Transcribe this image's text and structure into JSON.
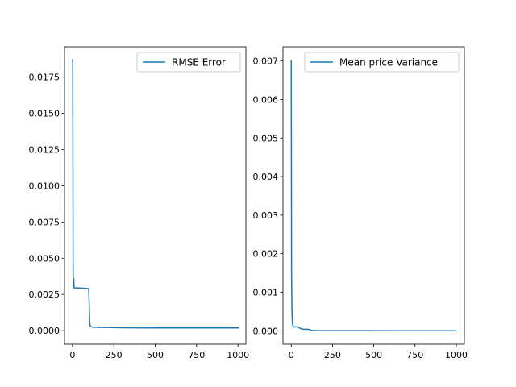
{
  "chart_data": [
    {
      "type": "line",
      "title": "",
      "xlabel": "",
      "ylabel": "",
      "xlim": [
        -48,
        1048
      ],
      "ylim": [
        -0.00094,
        0.0196
      ],
      "xticks": [
        0,
        250,
        500,
        750,
        1000
      ],
      "xtick_labels": [
        "0",
        "250",
        "500",
        "750",
        "1000"
      ],
      "yticks": [
        0.0,
        0.0025,
        0.005,
        0.0075,
        0.01,
        0.0125,
        0.015,
        0.0175
      ],
      "ytick_labels": [
        "0.0000",
        "0.0025",
        "0.0050",
        "0.0075",
        "0.0100",
        "0.0125",
        "0.0150",
        "0.0175"
      ],
      "legend": "upper right",
      "grid": false,
      "series": [
        {
          "name": "RMSE Error",
          "color": "#1f77b4",
          "x": [
            0,
            2,
            4,
            6,
            8,
            10,
            14,
            20,
            40,
            60,
            80,
            90,
            95,
            98,
            100,
            102,
            104,
            107,
            110,
            120,
            150,
            200,
            300,
            500,
            700,
            1000
          ],
          "y": [
            0.0187,
            0.0185,
            0.0038,
            0.0031,
            0.0036,
            0.00295,
            0.00295,
            0.00295,
            0.00294,
            0.00293,
            0.00292,
            0.0029,
            0.0029,
            0.0029,
            0.0023,
            0.0015,
            0.0006,
            0.00035,
            0.00028,
            0.00025,
            0.00023,
            0.00022,
            0.0002,
            0.00019,
            0.00019,
            0.00019
          ]
        }
      ]
    },
    {
      "type": "line",
      "title": "",
      "xlabel": "",
      "ylabel": "",
      "xlim": [
        -50,
        1049
      ],
      "ylim": [
        -0.00035,
        0.00737
      ],
      "xticks": [
        0,
        250,
        500,
        750,
        1000
      ],
      "xtick_labels": [
        "0",
        "250",
        "500",
        "750",
        "1000"
      ],
      "yticks": [
        0.0,
        0.001,
        0.002,
        0.003,
        0.004,
        0.005,
        0.006,
        0.007
      ],
      "ytick_labels": [
        "0.000",
        "0.001",
        "0.002",
        "0.003",
        "0.004",
        "0.005",
        "0.006",
        "0.007"
      ],
      "legend": "upper right",
      "grid": false,
      "series": [
        {
          "name": "Mean price Variance",
          "color": "#1f77b4",
          "x": [
            0,
            2,
            4,
            6,
            8,
            10,
            15,
            20,
            30,
            40,
            50,
            70,
            100,
            110,
            120,
            150,
            200,
            400,
            700,
            1000
          ],
          "y": [
            0.007,
            0.0015,
            0.0006,
            0.0003,
            0.00018,
            0.00013,
            0.0001,
            0.0001,
            0.0001,
            0.0001,
            7e-05,
            4e-05,
            4e-05,
            3e-05,
            1e-05,
            5e-06,
            3e-06,
            2e-06,
            1e-06,
            1e-06
          ]
        }
      ]
    }
  ]
}
